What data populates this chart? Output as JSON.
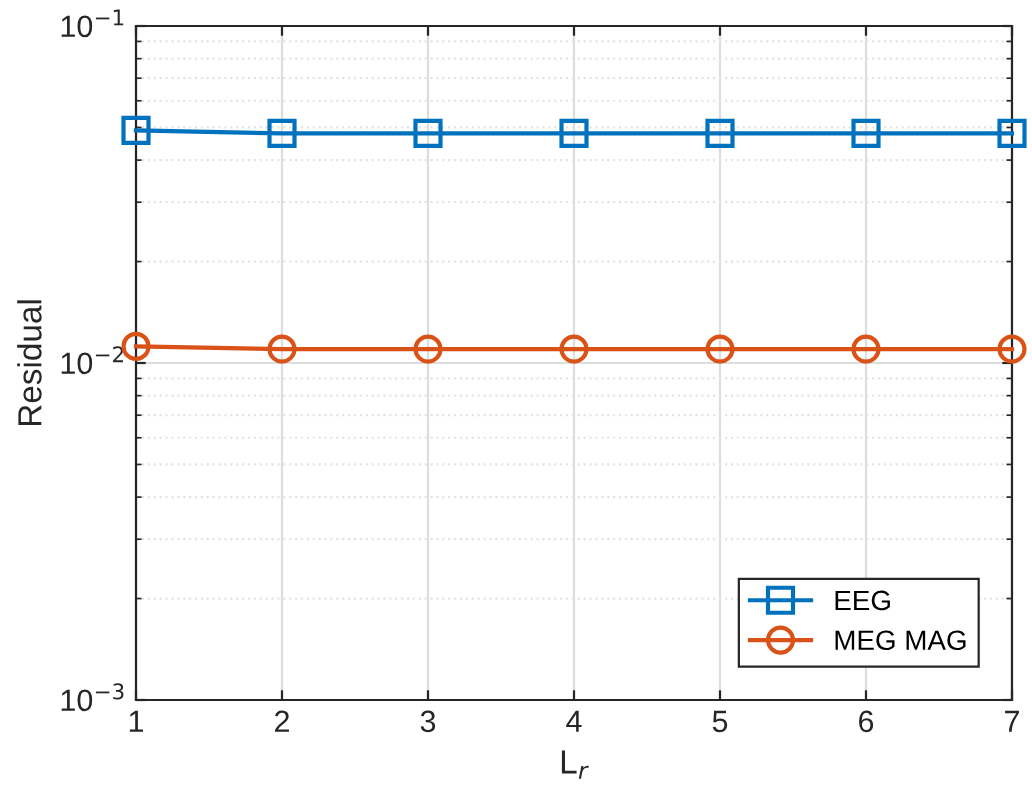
{
  "chart_data": {
    "type": "line",
    "xlabel": "L$_{r}$",
    "ylabel": "Residual",
    "x": [
      1,
      2,
      3,
      4,
      5,
      6,
      7
    ],
    "log": "y",
    "xlim": [
      1,
      7
    ],
    "xticks": [
      1,
      2,
      3,
      4,
      5,
      6,
      7
    ],
    "ylim": [
      0.001,
      0.1
    ],
    "yticks": [
      {
        "value": 0.001,
        "label": "10$^{−3}$"
      },
      {
        "value": 0.01,
        "label": "10$^{−2}$"
      },
      {
        "value": 0.1,
        "label": "10$^{−1}$"
      }
    ],
    "grid": true,
    "legend": "bottom right",
    "series": [
      {
        "name": "EEG",
        "color": "#0072bd",
        "marker": "square",
        "values": [
          0.049,
          0.048,
          0.048,
          0.048,
          0.048,
          0.048,
          0.048
        ]
      },
      {
        "name": "MEG MAG",
        "color": "#d95319",
        "marker": "circle",
        "values": [
          0.0112,
          0.011,
          0.011,
          0.011,
          0.011,
          0.011,
          0.011
        ]
      }
    ]
  }
}
